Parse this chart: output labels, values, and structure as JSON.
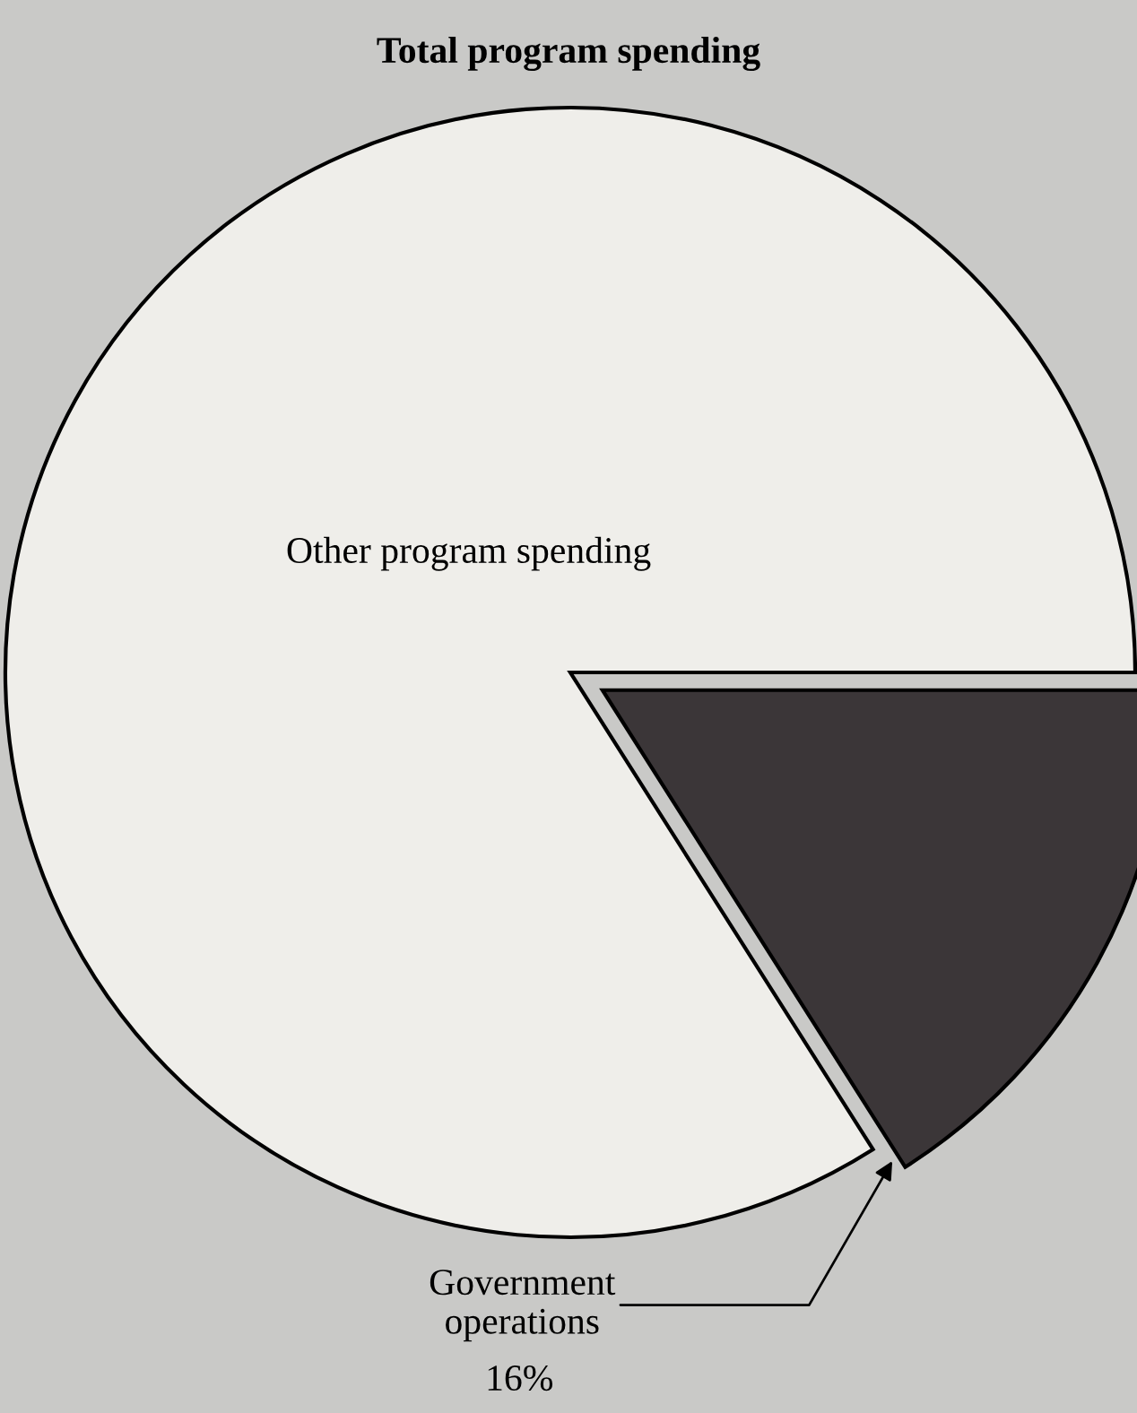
{
  "chart_data": {
    "type": "pie",
    "title": "Total program spending",
    "categories": [
      "Other program spending",
      "Government operations"
    ],
    "values": [
      84,
      16
    ],
    "colors": [
      "#efeeea",
      "#3b3638"
    ],
    "value_labels": [
      null,
      "16%"
    ]
  }
}
